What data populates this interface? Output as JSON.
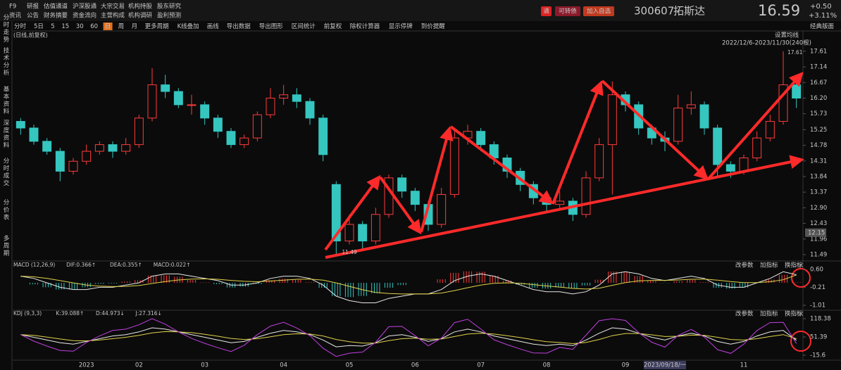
{
  "header": {
    "row1": [
      "F9",
      "研报",
      "估值通道",
      "沪深股通",
      "大宗交易",
      "机构持股",
      "股东研究"
    ],
    "row2": [
      "资讯",
      "公告",
      "财务摘要",
      "资金流向",
      "主营构成",
      "机构调研",
      "盈利预测"
    ],
    "badge": "通",
    "convertible": "可转债",
    "add_watch": "加入自选",
    "code": "300607",
    "name": "拓斯达",
    "price": "16.59",
    "change": "+0.50",
    "change_pct": "+3.11%"
  },
  "toolbar": {
    "items": [
      "分时",
      "5日",
      "5",
      "15",
      "30",
      "60",
      "日",
      "周",
      "月",
      "更多周期",
      "K线叠加",
      "画线",
      "导出数据",
      "导出图形",
      "区间统计",
      "前复权",
      "除权计算器",
      "显示停牌",
      "到价提醒"
    ],
    "active": 6,
    "layout": "经典版面"
  },
  "sidebar": [
    {
      "label": "分时走势",
      "active": false
    },
    {
      "label": "技术分析",
      "active": true
    },
    {
      "label": "基本资料",
      "active": false
    },
    {
      "label": "深度资料",
      "active": false
    },
    {
      "label": "分时成交",
      "active": false
    },
    {
      "label": "分价表",
      "active": false
    },
    {
      "label": "多周期",
      "active": false
    }
  ],
  "chart_data": {
    "type": "candlestick",
    "subtitle": "(日线,前复权)",
    "ma_setting": "设置均线",
    "range": "2022/12/6-2023/11/30(240根)",
    "categories": [
      null,
      null,
      null,
      null,
      null,
      "2023",
      null,
      null,
      null,
      "02",
      null,
      null,
      null,
      null,
      "03",
      null,
      null,
      null,
      null,
      null,
      "04",
      null,
      null,
      null,
      null,
      "05",
      null,
      null,
      null,
      null,
      "06",
      null,
      null,
      null,
      null,
      "07",
      null,
      null,
      null,
      null,
      "08",
      null,
      null,
      null,
      null,
      null,
      "09",
      null,
      null,
      "2023/09/18/一",
      null,
      null,
      null,
      null,
      null,
      "11",
      null,
      null,
      null,
      null
    ],
    "open": [
      15.5,
      15.3,
      14.9,
      14.6,
      14.0,
      14.3,
      14.6,
      14.8,
      14.6,
      14.8,
      15.6,
      16.6,
      16.4,
      16.0,
      16.0,
      15.6,
      15.2,
      14.8,
      15.0,
      15.7,
      16.2,
      16.3,
      16.1,
      15.6,
      13.6,
      11.9,
      12.4,
      11.9,
      12.7,
      13.8,
      13.4,
      13.0,
      12.4,
      13.3,
      15.0,
      15.2,
      14.8,
      14.4,
      14.0,
      13.6,
      13.2,
      13.0,
      13.1,
      12.7,
      13.8,
      14.8,
      16.3,
      16.0,
      15.3,
      15.0,
      14.9,
      15.9,
      16.0,
      15.3,
      14.2,
      14.0,
      14.4,
      15.0,
      15.5,
      16.6
    ],
    "high": [
      15.6,
      15.4,
      15.0,
      14.7,
      14.4,
      14.8,
      14.9,
      14.9,
      15.0,
      15.7,
      17.1,
      16.9,
      16.5,
      16.3,
      16.1,
      15.7,
      15.3,
      15.1,
      15.8,
      16.5,
      16.6,
      16.5,
      16.2,
      15.7,
      13.7,
      12.7,
      12.5,
      12.9,
      13.9,
      13.9,
      13.5,
      13.1,
      13.5,
      15.3,
      15.4,
      15.3,
      14.9,
      14.5,
      14.1,
      13.7,
      13.3,
      13.4,
      13.2,
      14.0,
      15.0,
      16.7,
      16.4,
      16.1,
      15.4,
      15.2,
      16.3,
      16.4,
      16.1,
      15.4,
      14.3,
      14.5,
      15.2,
      15.7,
      17.61,
      16.8
    ],
    "low": [
      15.1,
      14.8,
      14.5,
      13.7,
      13.9,
      14.2,
      14.5,
      14.4,
      14.5,
      14.7,
      15.5,
      16.2,
      15.9,
      15.7,
      15.4,
      15.0,
      14.7,
      14.7,
      14.9,
      15.6,
      16.0,
      15.9,
      15.4,
      14.3,
      11.49,
      11.8,
      11.6,
      11.8,
      12.6,
      13.2,
      12.8,
      12.2,
      12.3,
      13.2,
      14.8,
      14.6,
      14.2,
      13.8,
      13.4,
      13.0,
      12.8,
      12.9,
      12.5,
      12.6,
      13.7,
      13.3,
      15.8,
      15.1,
      14.8,
      14.6,
      14.8,
      15.7,
      15.1,
      13.8,
      13.8,
      13.9,
      14.3,
      14.9,
      15.4,
      15.9
    ],
    "close": [
      15.3,
      14.9,
      14.6,
      14.0,
      14.3,
      14.6,
      14.8,
      14.6,
      14.8,
      15.6,
      16.6,
      16.4,
      16.0,
      16.0,
      15.6,
      15.2,
      14.8,
      15.0,
      15.7,
      16.2,
      16.3,
      16.1,
      15.6,
      14.5,
      11.9,
      12.4,
      11.9,
      12.7,
      13.8,
      13.4,
      13.0,
      12.4,
      13.3,
      15.0,
      15.2,
      14.8,
      14.4,
      14.0,
      13.6,
      13.2,
      13.0,
      13.1,
      12.7,
      13.8,
      14.8,
      16.3,
      16.0,
      15.3,
      15.0,
      14.9,
      15.9,
      16.0,
      15.3,
      14.2,
      14.0,
      14.4,
      15.0,
      15.5,
      16.6,
      16.2
    ],
    "up_color": "#ff3b3b",
    "down_color": "#35c6c0",
    "min_index": 24,
    "max_index": 58,
    "price_tag": 12.15,
    "ylim": [
      11.32,
      18.2
    ],
    "yticks": [
      17.61,
      17.14,
      16.67,
      {
        "value": 16.2,
        "label": "16.20"
      },
      15.73,
      15.25,
      14.78,
      14.31,
      13.84,
      13.37,
      {
        "value": 12.9,
        "label": "12.90"
      },
      12.43,
      11.96,
      11.49
    ],
    "macd": {
      "title": "MACD (12,26,9)",
      "labels": [
        "DIF:0.366↑",
        "DEA:0.355↑",
        "MACD:0.022↑"
      ],
      "buttons": [
        "改参数",
        "加指标",
        "换指标"
      ],
      "dif": [
        0.3,
        0.2,
        0.0,
        -0.2,
        -0.3,
        -0.3,
        -0.2,
        -0.2,
        -0.1,
        0.0,
        0.3,
        0.4,
        0.4,
        0.3,
        0.2,
        0.1,
        -0.1,
        -0.1,
        0.0,
        0.2,
        0.3,
        0.3,
        0.2,
        -0.1,
        -0.6,
        -0.8,
        -0.9,
        -0.9,
        -0.7,
        -0.6,
        -0.5,
        -0.5,
        -0.3,
        0.1,
        0.3,
        0.4,
        0.3,
        0.1,
        -0.1,
        -0.3,
        -0.4,
        -0.4,
        -0.5,
        -0.4,
        -0.1,
        0.4,
        0.5,
        0.4,
        0.2,
        0.1,
        0.2,
        0.3,
        0.2,
        -0.1,
        -0.2,
        -0.2,
        0.0,
        0.2,
        0.5,
        0.366
      ],
      "dea": [
        0.3,
        0.27,
        0.2,
        0.1,
        0.0,
        -0.1,
        -0.15,
        -0.17,
        -0.16,
        -0.12,
        -0.03,
        0.06,
        0.13,
        0.17,
        0.18,
        0.16,
        0.11,
        0.07,
        0.05,
        0.08,
        0.12,
        0.16,
        0.17,
        0.12,
        0.0,
        -0.16,
        -0.31,
        -0.43,
        -0.48,
        -0.5,
        -0.5,
        -0.5,
        -0.46,
        -0.35,
        -0.22,
        -0.1,
        -0.02,
        0.0,
        -0.02,
        -0.08,
        -0.14,
        -0.19,
        -0.25,
        -0.28,
        -0.24,
        -0.11,
        0.01,
        0.09,
        0.11,
        0.11,
        0.13,
        0.16,
        0.17,
        0.12,
        0.06,
        0.01,
        0.01,
        0.05,
        0.14,
        0.355
      ],
      "hist": [
        0,
        -0.07,
        -0.2,
        -0.3,
        -0.3,
        -0.2,
        -0.05,
        -0.03,
        0.06,
        0.12,
        0.33,
        0.34,
        0.27,
        0.13,
        0.02,
        -0.06,
        -0.21,
        -0.17,
        -0.05,
        0.12,
        0.18,
        0.14,
        0.03,
        -0.22,
        -0.6,
        -0.64,
        -0.59,
        -0.47,
        -0.22,
        -0.1,
        0,
        0,
        0.16,
        0.45,
        0.52,
        0.5,
        0.32,
        0.1,
        -0.08,
        -0.22,
        -0.26,
        -0.21,
        -0.25,
        -0.12,
        0.14,
        0.51,
        0.49,
        0.31,
        0.09,
        -0.01,
        0.07,
        0.14,
        0.03,
        -0.22,
        -0.26,
        -0.21,
        -0.01,
        0.15,
        0.36,
        0.022
      ],
      "colors": [
        "#e8e8e8",
        "#e0d24a",
        "#d946d9"
      ],
      "ylim": [
        -1.2,
        0.92
      ],
      "yticks": [
        {
          "value": 0.6,
          "label": "0.60"
        },
        -0.21,
        -1.01
      ]
    },
    "kdj": {
      "title": "KDJ (9,3,3)",
      "labels": [
        "K:39.088↑",
        "D:44.973↓",
        "J:27.316↓"
      ],
      "buttons": [
        "改参数",
        "加指标",
        "换指标"
      ],
      "k": [
        60,
        50,
        40,
        30,
        25,
        35,
        45,
        55,
        60,
        70,
        85,
        80,
        70,
        60,
        50,
        40,
        30,
        35,
        50,
        65,
        75,
        70,
        60,
        40,
        15,
        20,
        18,
        30,
        55,
        60,
        50,
        35,
        45,
        70,
        80,
        70,
        55,
        45,
        35,
        25,
        20,
        25,
        20,
        40,
        65,
        85,
        80,
        65,
        50,
        40,
        55,
        65,
        55,
        35,
        25,
        35,
        55,
        70,
        75,
        39.088
      ],
      "d": [
        60,
        57,
        51,
        44,
        38,
        37,
        40,
        45,
        50,
        57,
        66,
        71,
        70,
        67,
        61,
        54,
        46,
        42,
        45,
        52,
        60,
        63,
        62,
        55,
        42,
        34,
        29,
        29,
        38,
        45,
        47,
        43,
        44,
        53,
        62,
        65,
        62,
        56,
        49,
        41,
        34,
        31,
        27,
        31,
        42,
        56,
        64,
        64,
        59,
        53,
        54,
        58,
        57,
        50,
        42,
        40,
        45,
        53,
        60,
        44.973
      ],
      "j": [
        60,
        36,
        18,
        2,
        -1,
        31,
        55,
        75,
        80,
        96,
        118,
        98,
        70,
        46,
        28,
        12,
        -2,
        21,
        60,
        91,
        105,
        84,
        56,
        10,
        -20,
        -8,
        -4,
        32,
        89,
        90,
        56,
        19,
        47,
        104,
        116,
        80,
        41,
        23,
        7,
        -7,
        -8,
        13,
        6,
        58,
        111,
        118,
        112,
        67,
        32,
        14,
        57,
        79,
        51,
        5,
        -9,
        25,
        75,
        104,
        105,
        27.316
      ],
      "colors": [
        "#e8e8e8",
        "#e0d24a",
        "#c040e0"
      ],
      "ylim": [
        -33.6,
        146.7
      ],
      "yticks": [
        118.38,
        51.39,
        -15.6
      ]
    }
  }
}
